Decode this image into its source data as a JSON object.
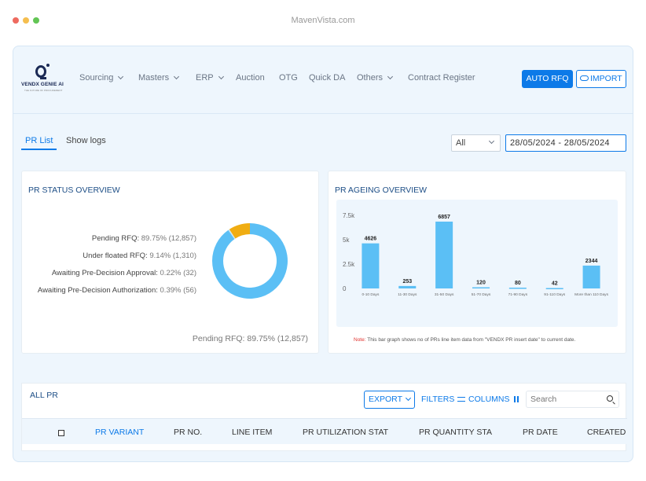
{
  "window": {
    "url": "MavenVista.com"
  },
  "logo": {
    "name": "VENDX GENIE AI",
    "tagline": "THE FUTURE OF PROCUREMENT"
  },
  "nav": {
    "items": [
      {
        "label": "Sourcing",
        "dropdown": true
      },
      {
        "label": "Masters",
        "dropdown": true
      },
      {
        "label": "ERP",
        "dropdown": true
      },
      {
        "label": "Auction",
        "dropdown": false
      },
      {
        "label": "OTG",
        "dropdown": false
      },
      {
        "label": "Quick DA",
        "dropdown": false
      },
      {
        "label": "Others",
        "dropdown": true
      },
      {
        "label": "Contract Register",
        "dropdown": false
      }
    ],
    "auto_rfq_label": "AUTO RFQ",
    "import_label": "IMPORT"
  },
  "tabs": [
    {
      "label": "PR List",
      "active": true
    },
    {
      "label": "Show logs",
      "active": false
    }
  ],
  "filter": {
    "select_value": "All",
    "date_range": "28/05/2024 - 28/05/2024"
  },
  "status_overview": {
    "title": "PR STATUS OVERVIEW",
    "legend": [
      {
        "label": "Pending RFQ:",
        "value": "89.75% (12,857)"
      },
      {
        "label": "Under floated RFQ:",
        "value": "9.14% (1,310)"
      },
      {
        "label": "Awaiting Pre-Decision Approval:",
        "value": "0.22% (32)"
      },
      {
        "label": "Awaiting Pre-Decision Authorization:",
        "value": "0.39% (56)"
      }
    ],
    "caption": "Pending RFQ: 89.75% (12,857)"
  },
  "chart_data": [
    {
      "type": "pie",
      "title": "PR STATUS OVERVIEW",
      "categories": [
        "Pending RFQ",
        "Under floated RFQ",
        "Awaiting Pre-Decision Approval",
        "Awaiting Pre-Decision Authorization"
      ],
      "values": [
        12857,
        1310,
        32,
        56
      ],
      "percentages": [
        89.75,
        9.14,
        0.22,
        0.39
      ],
      "colors": [
        "#5bbff5",
        "#f0ad12",
        "#9ccff0",
        "#cfe8f8"
      ],
      "style": "donut"
    },
    {
      "type": "bar",
      "title": "PR AGEING OVERVIEW",
      "categories": [
        "0-10 Days",
        "11-30 Days",
        "31-50 Days",
        "51-70 Days",
        "71-90 Days",
        "91-110 Days",
        "More than 110 Days"
      ],
      "values": [
        4626,
        253,
        6857,
        120,
        80,
        42,
        2344
      ],
      "ylim": [
        0,
        7500
      ],
      "yticks": [
        "0",
        "2.5k",
        "5k",
        "7.5k"
      ],
      "ytick_values": [
        0,
        2500,
        5000,
        7500
      ],
      "color": "#5bbff5",
      "grid": false
    }
  ],
  "ageing_overview": {
    "title": "PR AGEING OVERVIEW",
    "note_label": "Note:",
    "note_text": " This bar graph shows no of PRs line item data from \"VENDX PR insert date\" to current date."
  },
  "all_pr": {
    "title": "ALL PR",
    "export_label": "EXPORT",
    "filters_label": "FILTERS",
    "columns_label": "COLUMNS",
    "search_placeholder": "Search",
    "columns": [
      {
        "label": "PR VARIANT",
        "active": true
      },
      {
        "label": "PR NO.",
        "active": false
      },
      {
        "label": "LINE ITEM",
        "active": false
      },
      {
        "label": "PR UTILIZATION STAT",
        "active": false
      },
      {
        "label": "PR QUANTITY STA",
        "active": false
      },
      {
        "label": "PR DATE",
        "active": false
      },
      {
        "label": "CREATED",
        "active": false
      }
    ]
  }
}
